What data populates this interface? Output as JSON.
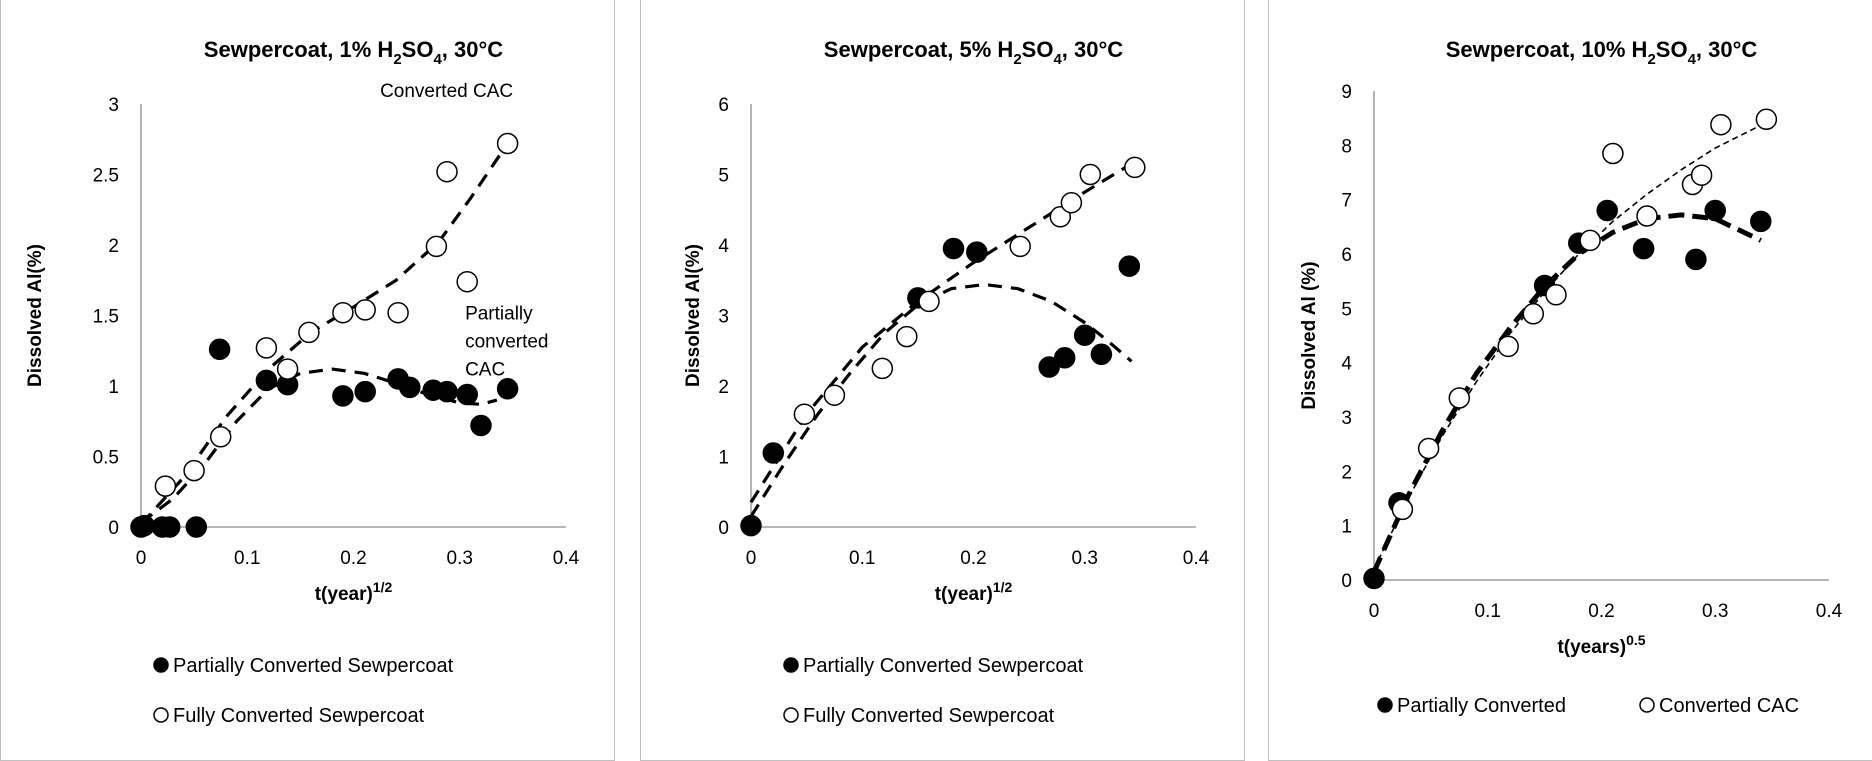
{
  "chart_data": [
    {
      "type": "scatter",
      "title": "Sewpercoat, 1% H2SO4, 30°C",
      "title_parts": [
        "Sewpercoat, 1% H",
        "2",
        "SO",
        "4",
        ", 30°C"
      ],
      "xlabel_parts": [
        "t(year)",
        "1/2"
      ],
      "ylabel": "Dissolved Al(%)",
      "xlim": [
        0,
        0.4
      ],
      "ylim": [
        0,
        3
      ],
      "xticks": [
        0,
        0.1,
        0.2,
        0.3,
        0.4
      ],
      "xtick_labels": [
        "0",
        "0.1",
        "0.2",
        "0.3",
        "0.4"
      ],
      "yticks": [
        0,
        0.5,
        1,
        1.5,
        2,
        2.5,
        3
      ],
      "ytick_labels": [
        "0",
        "0.5",
        "1",
        "1.5",
        "2",
        "2.5",
        "3"
      ],
      "grid": false,
      "legend_position": "bottom",
      "legend_layout": "vertical",
      "annotations": [
        {
          "lines": [
            "Converted  CAC"
          ],
          "x": 0.225,
          "y": 3.05
        },
        {
          "lines": [
            "Partially",
            "converted",
            "CAC"
          ],
          "x": 0.305,
          "y": 1.47
        }
      ],
      "series": [
        {
          "name": "Partially Converted Sewpercoat",
          "marker": "filled",
          "points": [
            [
              0,
              0
            ],
            [
              0.003,
              0.01
            ],
            [
              0.02,
              0
            ],
            [
              0.027,
              0
            ],
            [
              0.052,
              0
            ],
            [
              0.074,
              1.26
            ],
            [
              0.118,
              1.04
            ],
            [
              0.138,
              1.01
            ],
            [
              0.19,
              0.93
            ],
            [
              0.211,
              0.96
            ],
            [
              0.242,
              1.05
            ],
            [
              0.253,
              0.99
            ],
            [
              0.275,
              0.97
            ],
            [
              0.288,
              0.96
            ],
            [
              0.307,
              0.94
            ],
            [
              0.32,
              0.72
            ],
            [
              0.345,
              0.98
            ]
          ],
          "trend": {
            "style": "dashed",
            "points": [
              [
                0,
                0.03
              ],
              [
                0.03,
                0.2
              ],
              [
                0.06,
                0.45
              ],
              [
                0.09,
                0.75
              ],
              [
                0.12,
                0.98
              ],
              [
                0.15,
                1.09
              ],
              [
                0.18,
                1.12
              ],
              [
                0.21,
                1.09
              ],
              [
                0.24,
                1.02
              ],
              [
                0.27,
                0.94
              ],
              [
                0.3,
                0.88
              ],
              [
                0.32,
                0.87
              ],
              [
                0.335,
                0.9
              ]
            ]
          }
        },
        {
          "name": "Fully Converted Sewpercoat",
          "marker": "open",
          "points": [
            [
              0.023,
              0.29
            ],
            [
              0.05,
              0.4
            ],
            [
              0.075,
              0.64
            ],
            [
              0.118,
              1.27
            ],
            [
              0.138,
              1.12
            ],
            [
              0.158,
              1.38
            ],
            [
              0.19,
              1.52
            ],
            [
              0.211,
              1.54
            ],
            [
              0.242,
              1.52
            ],
            [
              0.278,
              1.99
            ],
            [
              0.288,
              2.52
            ],
            [
              0.307,
              1.74
            ],
            [
              0.345,
              2.72
            ]
          ],
          "trend": {
            "style": "dashed",
            "points": [
              [
                0,
                0.02
              ],
              [
                0.04,
                0.35
              ],
              [
                0.08,
                0.78
              ],
              [
                0.12,
                1.12
              ],
              [
                0.16,
                1.38
              ],
              [
                0.2,
                1.56
              ],
              [
                0.24,
                1.75
              ],
              [
                0.28,
                2.02
              ],
              [
                0.31,
                2.33
              ],
              [
                0.345,
                2.72
              ]
            ]
          }
        }
      ]
    },
    {
      "type": "scatter",
      "title": "Sewpercoat, 5% H2SO4, 30°C",
      "title_parts": [
        "Sewpercoat, 5% H",
        "2",
        "SO",
        "4",
        ", 30°C"
      ],
      "xlabel_parts": [
        "t(year)",
        "1/2"
      ],
      "ylabel": "Dissolved Al(%)",
      "xlim": [
        0,
        0.4
      ],
      "ylim": [
        0,
        6
      ],
      "xticks": [
        0,
        0.1,
        0.2,
        0.3,
        0.4
      ],
      "xtick_labels": [
        "0",
        "0.1",
        "0.2",
        "0.3",
        "0.4"
      ],
      "yticks": [
        0,
        1,
        2,
        3,
        4,
        5,
        6
      ],
      "ytick_labels": [
        "0",
        "1",
        "2",
        "3",
        "4",
        "5",
        "6"
      ],
      "grid": false,
      "legend_position": "bottom",
      "legend_layout": "vertical",
      "annotations": [],
      "series": [
        {
          "name": "Partially Converted Sewpercoat",
          "marker": "filled",
          "points": [
            [
              0,
              0.02
            ],
            [
              0.02,
              1.05
            ],
            [
              0.15,
              3.25
            ],
            [
              0.182,
              3.95
            ],
            [
              0.203,
              3.9
            ],
            [
              0.268,
              2.27
            ],
            [
              0.282,
              2.4
            ],
            [
              0.3,
              2.72
            ],
            [
              0.315,
              2.45
            ],
            [
              0.34,
              3.7
            ]
          ],
          "trend": {
            "style": "dashed",
            "points": [
              [
                0,
                0.15
              ],
              [
                0.03,
                0.9
              ],
              [
                0.06,
                1.6
              ],
              [
                0.09,
                2.2
              ],
              [
                0.12,
                2.75
              ],
              [
                0.15,
                3.15
              ],
              [
                0.18,
                3.38
              ],
              [
                0.21,
                3.44
              ],
              [
                0.24,
                3.38
              ],
              [
                0.27,
                3.2
              ],
              [
                0.3,
                2.9
              ],
              [
                0.32,
                2.65
              ],
              [
                0.342,
                2.35
              ]
            ]
          }
        },
        {
          "name": "Fully Converted Sewpercoat",
          "marker": "open",
          "points": [
            [
              0.048,
              1.6
            ],
            [
              0.075,
              1.87
            ],
            [
              0.118,
              2.25
            ],
            [
              0.14,
              2.7
            ],
            [
              0.16,
              3.2
            ],
            [
              0.242,
              3.98
            ],
            [
              0.278,
              4.4
            ],
            [
              0.288,
              4.6
            ],
            [
              0.305,
              5.0
            ],
            [
              0.345,
              5.1
            ]
          ],
          "trend": {
            "style": "dashed",
            "points": [
              [
                0,
                0.35
              ],
              [
                0.05,
                1.6
              ],
              [
                0.1,
                2.55
              ],
              [
                0.15,
                3.2
              ],
              [
                0.2,
                3.75
              ],
              [
                0.25,
                4.25
              ],
              [
                0.3,
                4.75
              ],
              [
                0.345,
                5.18
              ]
            ]
          }
        }
      ]
    },
    {
      "type": "scatter",
      "title": "Sewpercoat, 10% H2SO4, 30°C",
      "title_parts": [
        "Sewpercoat, 10% H",
        "2",
        "SO",
        "4",
        ", 30°C"
      ],
      "xlabel_parts": [
        "t(years)",
        "0.5"
      ],
      "ylabel": "Dissolved Al (%)",
      "xlim": [
        0,
        0.4
      ],
      "ylim": [
        0,
        9
      ],
      "xticks": [
        0,
        0.1,
        0.2,
        0.3,
        0.4
      ],
      "xtick_labels": [
        "0",
        "0.1",
        "0.2",
        "0.3",
        "0.4"
      ],
      "yticks": [
        0,
        1,
        2,
        3,
        4,
        5,
        6,
        7,
        8,
        9
      ],
      "ytick_labels": [
        "0",
        "1",
        "2",
        "3",
        "4",
        "5",
        "6",
        "7",
        "8",
        "9"
      ],
      "grid": false,
      "legend_position": "bottom",
      "legend_layout": "horizontal",
      "annotations": [],
      "series": [
        {
          "name": "Partially Converted",
          "marker": "filled",
          "points": [
            [
              0,
              0.03
            ],
            [
              0.022,
              1.42
            ],
            [
              0.15,
              5.42
            ],
            [
              0.18,
              6.2
            ],
            [
              0.205,
              6.8
            ],
            [
              0.237,
              6.1
            ],
            [
              0.283,
              5.9
            ],
            [
              0.3,
              6.8
            ],
            [
              0.34,
              6.6
            ]
          ],
          "trend": {
            "style": "dashed-thick",
            "points": [
              [
                0,
                0.15
              ],
              [
                0.03,
                1.55
              ],
              [
                0.06,
                2.75
              ],
              [
                0.09,
                3.8
              ],
              [
                0.12,
                4.65
              ],
              [
                0.15,
                5.4
              ],
              [
                0.18,
                6.0
              ],
              [
                0.21,
                6.4
              ],
              [
                0.24,
                6.65
              ],
              [
                0.27,
                6.72
              ],
              [
                0.3,
                6.65
              ],
              [
                0.34,
                6.25
              ]
            ]
          }
        },
        {
          "name": "Converted CAC",
          "marker": "open",
          "points": [
            [
              0.025,
              1.3
            ],
            [
              0.048,
              2.42
            ],
            [
              0.075,
              3.35
            ],
            [
              0.118,
              4.3
            ],
            [
              0.14,
              4.9
            ],
            [
              0.16,
              5.25
            ],
            [
              0.19,
              6.25
            ],
            [
              0.21,
              7.85
            ],
            [
              0.24,
              6.7
            ],
            [
              0.28,
              7.28
            ],
            [
              0.288,
              7.45
            ],
            [
              0.305,
              8.38
            ],
            [
              0.345,
              8.48
            ]
          ],
          "trend": {
            "style": "dashed-thin",
            "points": [
              [
                0,
                0.2
              ],
              [
                0.03,
                1.5
              ],
              [
                0.06,
                2.65
              ],
              [
                0.09,
                3.65
              ],
              [
                0.12,
                4.55
              ],
              [
                0.15,
                5.3
              ],
              [
                0.18,
                6.0
              ],
              [
                0.21,
                6.6
              ],
              [
                0.24,
                7.1
              ],
              [
                0.27,
                7.55
              ],
              [
                0.3,
                7.95
              ],
              [
                0.345,
                8.42
              ]
            ]
          }
        }
      ]
    }
  ]
}
